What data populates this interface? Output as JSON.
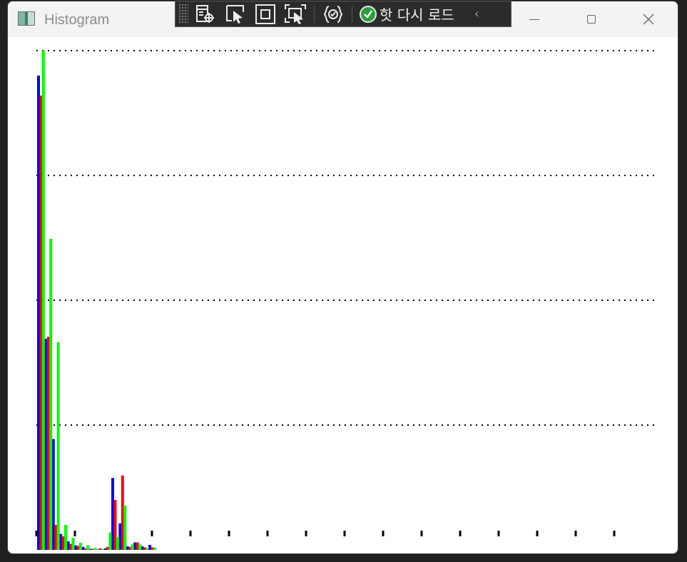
{
  "window": {
    "title": "Histogram"
  },
  "toolbar": {
    "hot_reload_label": "핫 다시 로드",
    "icons": [
      "select-element-icon",
      "pointer-icon",
      "display-layout-icon",
      "track-focus-icon",
      "binding-failures-icon",
      "hot-reload-status-icon",
      "collapse-icon"
    ]
  },
  "colors": {
    "blue": "#0000ff",
    "red": "#ff0000",
    "green": "#00ff00",
    "grid": "#000000",
    "hot_reload_ok": "#2e9e3c"
  },
  "chart_data": {
    "type": "bar",
    "title": "",
    "xlabel": "",
    "ylabel": "",
    "grid": true,
    "grid_lines": 4,
    "x_ticks": 16,
    "bins": 16,
    "ylim": [
      0,
      100
    ],
    "series": [
      {
        "color": "blue",
        "values": [
          95.0,
          42.3,
          22.2,
          3.2,
          1.7,
          0.9,
          0.6,
          0.2,
          0.1,
          0.3,
          14.4,
          5.3,
          0.7,
          1.5,
          0.7,
          1.0
        ]
      },
      {
        "color": "red",
        "values": [
          91.0,
          42.7,
          5.0,
          2.7,
          1.2,
          0.8,
          0.3,
          0.2,
          0.3,
          0.6,
          10.0,
          14.9,
          0.6,
          1.5,
          0.5,
          0.5
        ]
      },
      {
        "color": "green",
        "values": [
          100.0,
          62.3,
          41.6,
          5.0,
          2.4,
          1.4,
          0.9,
          0.4,
          0.2,
          3.5,
          2.6,
          8.9,
          1.1,
          1.1,
          0.3,
          0.5
        ]
      }
    ]
  }
}
